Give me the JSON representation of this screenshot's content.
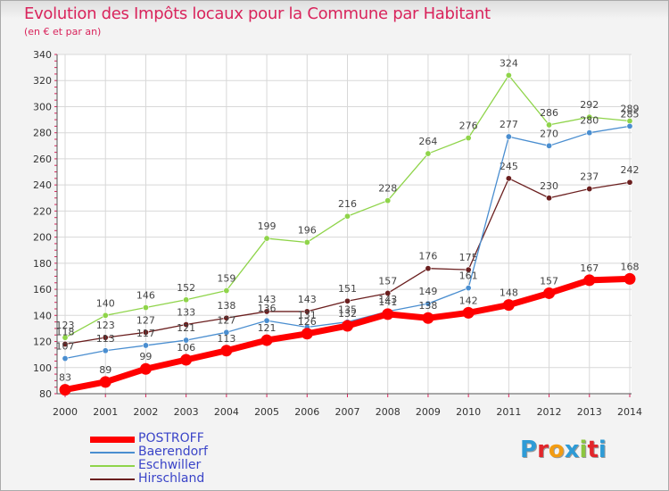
{
  "header": {
    "title": "Evolution des Impôts locaux pour la Commune par Habitant",
    "subtitle": "(en € et par an)"
  },
  "legend": {
    "items": [
      {
        "label": "POSTROFF",
        "color": "#ff0000"
      },
      {
        "label": "Baerendorf",
        "color": "#4a8ed0"
      },
      {
        "label": "Eschwiller",
        "color": "#8fd44a"
      },
      {
        "label": "Hirschland",
        "color": "#6b1f1f"
      }
    ]
  },
  "logo": {
    "letters": [
      "P",
      "r",
      "o",
      "x",
      "i",
      "t",
      "i"
    ],
    "colors": [
      "#2e9bd6",
      "#e2262b",
      "#f39c12",
      "#2e9bd6",
      "#8cc63f",
      "#e2262b",
      "#2e9bd6"
    ]
  },
  "chart_data": {
    "type": "line",
    "title": "Evolution des Impôts locaux pour la Commune par Habitant",
    "subtitle": "(en € et par an)",
    "xlabel": "",
    "ylabel": "",
    "x": [
      2000,
      2001,
      2002,
      2003,
      2004,
      2005,
      2006,
      2007,
      2008,
      2009,
      2010,
      2011,
      2012,
      2013,
      2014
    ],
    "ylim": [
      80,
      340
    ],
    "yticks": [
      80,
      100,
      120,
      140,
      160,
      180,
      200,
      220,
      240,
      260,
      280,
      300,
      320,
      340
    ],
    "grid": true,
    "legend_position": "bottom-left",
    "series": [
      {
        "name": "Eschwiller",
        "color": "#8fd44a",
        "values": [
          123,
          140,
          146,
          152,
          159,
          199,
          196,
          216,
          228,
          264,
          276,
          324,
          286,
          292,
          289
        ]
      },
      {
        "name": "Hirschland",
        "color": "#6b1f1f",
        "values": [
          118,
          123,
          127,
          133,
          138,
          143,
          143,
          151,
          157,
          176,
          175,
          245,
          230,
          237,
          242
        ]
      },
      {
        "name": "Baerendorf",
        "color": "#4a8ed0",
        "values": [
          107,
          113,
          117,
          121,
          127,
          136,
          131,
          135,
          143,
          149,
          161,
          277,
          270,
          280,
          285
        ]
      },
      {
        "name": "POSTROFF",
        "color": "#ff0000",
        "values": [
          83,
          89,
          99,
          106,
          113,
          121,
          126,
          132,
          141,
          138,
          142,
          148,
          157,
          167,
          168
        ]
      }
    ]
  }
}
